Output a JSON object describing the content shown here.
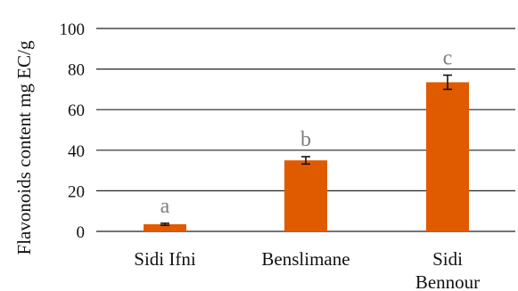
{
  "chart_data": {
    "type": "bar",
    "ylabel": "Flavonoids content mg EC/g",
    "categories": [
      [
        "Sidi Ifni"
      ],
      [
        "Benslimane"
      ],
      [
        "Sidi",
        "Bennour"
      ]
    ],
    "values": [
      3.5,
      35,
      73.5
    ],
    "errors": [
      0.5,
      1.8,
      3.5
    ],
    "significance_letters": [
      "a",
      "b",
      "c"
    ],
    "ylim": [
      0,
      100
    ],
    "yticks": [
      0,
      20,
      40,
      60,
      80,
      100
    ],
    "grid": true,
    "bar_color": "#e05a00",
    "letter_color": "#7f7f7f"
  }
}
